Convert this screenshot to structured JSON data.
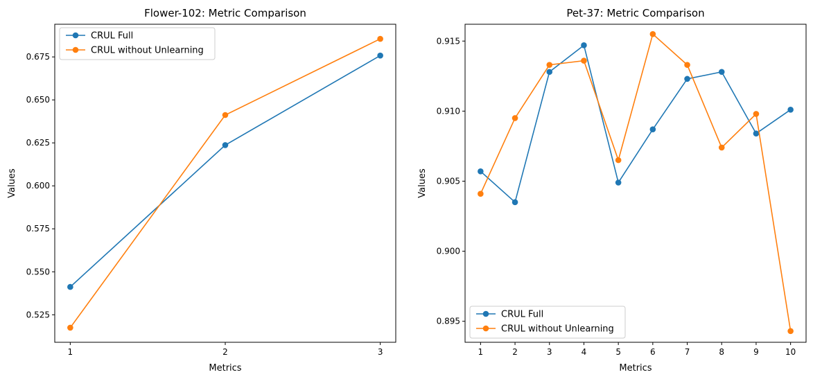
{
  "chart_data": [
    {
      "type": "line",
      "title": "Flower-102: Metric Comparison",
      "xlabel": "Metrics",
      "ylabel": "Values",
      "x": [
        1,
        2,
        3
      ],
      "xticks": [
        "1",
        "2",
        "3"
      ],
      "xlim": [
        0.9,
        3.1
      ],
      "ylim": [
        0.509,
        0.694
      ],
      "yticks": [
        "0.525",
        "0.550",
        "0.575",
        "0.600",
        "0.625",
        "0.650",
        "0.675"
      ],
      "legend_position": "upper-left",
      "series": [
        {
          "name": "CRUL Full",
          "color": "#1f77b4",
          "values": [
            0.5412,
            0.6237,
            0.6758
          ]
        },
        {
          "name": "CRUL without Unlearning",
          "color": "#ff7f0e",
          "values": [
            0.5175,
            0.6412,
            0.6855
          ]
        }
      ]
    },
    {
      "type": "line",
      "title": "Pet-37: Metric Comparison",
      "xlabel": "Metrics",
      "ylabel": "Values",
      "x": [
        1,
        2,
        3,
        4,
        5,
        6,
        7,
        8,
        9,
        10
      ],
      "xticks": [
        "1",
        "2",
        "3",
        "4",
        "5",
        "6",
        "7",
        "8",
        "9",
        "10"
      ],
      "xlim": [
        0.55,
        10.45
      ],
      "ylim": [
        0.8935,
        0.9162
      ],
      "yticks": [
        "0.895",
        "0.900",
        "0.905",
        "0.910",
        "0.915"
      ],
      "legend_position": "lower-left",
      "series": [
        {
          "name": "CRUL Full",
          "color": "#1f77b4",
          "values": [
            0.9057,
            0.9035,
            0.9128,
            0.9147,
            0.9049,
            0.9087,
            0.9123,
            0.9128,
            0.9084,
            0.9101
          ]
        },
        {
          "name": "CRUL without Unlearning",
          "color": "#ff7f0e",
          "values": [
            0.9041,
            0.9095,
            0.9133,
            0.9136,
            0.9065,
            0.9155,
            0.9133,
            0.9074,
            0.9098,
            0.8943
          ]
        }
      ]
    }
  ]
}
